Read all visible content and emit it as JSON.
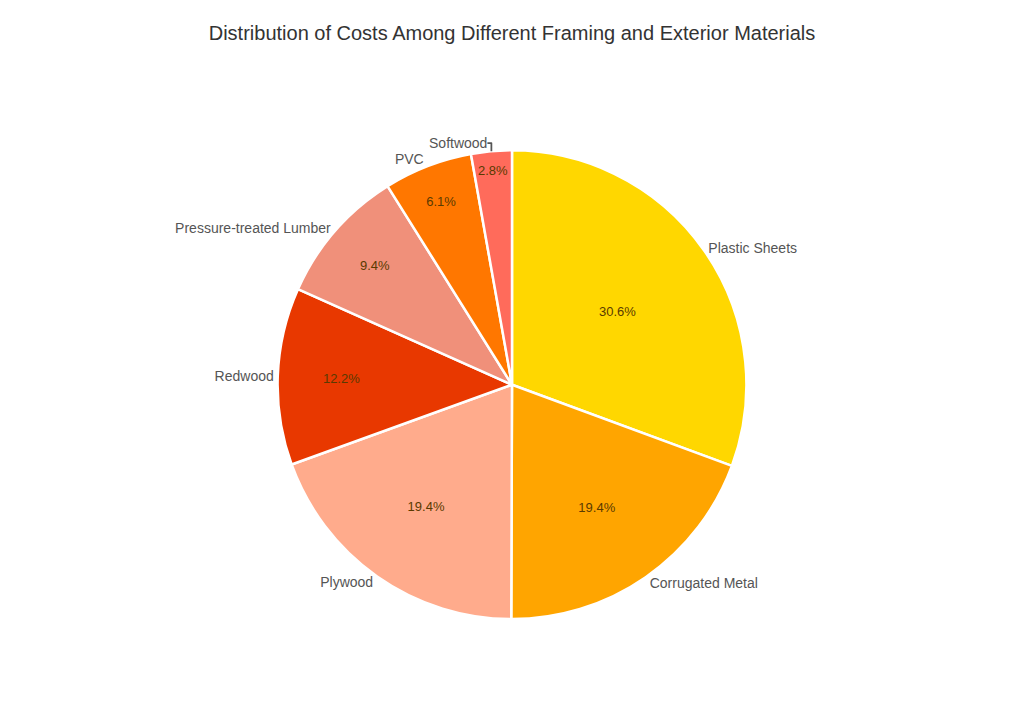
{
  "chart_data": {
    "type": "pie",
    "title": "Distribution of Costs Among Different Framing and Exterior Materials",
    "categories": [
      "Plastic Sheets",
      "Corrugated Metal",
      "Plywood",
      "Redwood",
      "Pressure-treated Lumber",
      "PVC",
      "Softwood"
    ],
    "values": [
      30.6,
      19.4,
      19.4,
      12.2,
      9.4,
      6.1,
      2.8
    ],
    "value_labels": [
      "30.6%",
      "19.4%",
      "19.4%",
      "12.2%",
      "9.4%",
      "6.1%",
      "2.8%"
    ],
    "colors": [
      "#FFD700",
      "#FFA500",
      "#FFAB8C",
      "#E83800",
      "#F0907A",
      "#FF7700",
      "#FF6B5B"
    ],
    "data_labels": true
  }
}
